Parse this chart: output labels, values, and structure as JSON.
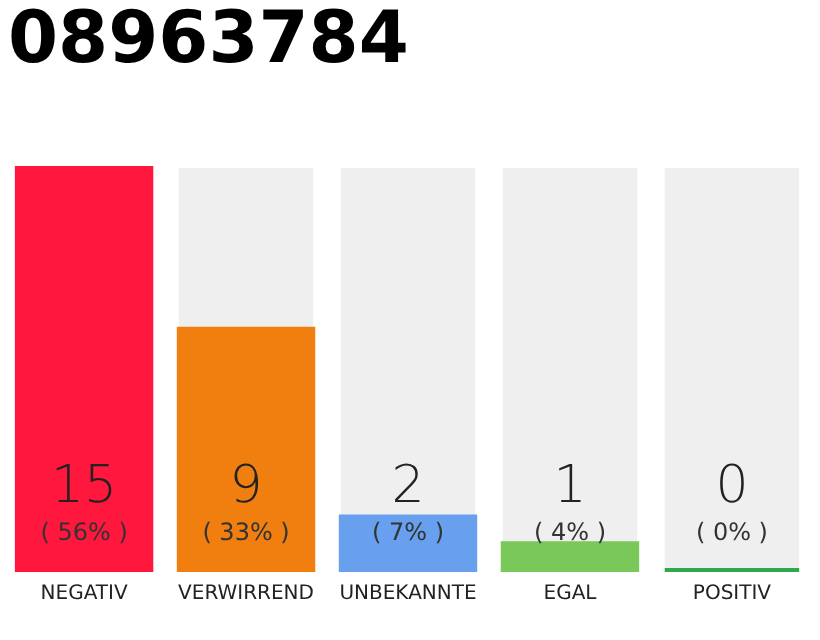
{
  "chart_data": {
    "type": "bar",
    "title": "08963784",
    "categories": [
      "NEGATIV",
      "VERWIRREND",
      "UNBEKANNTE",
      "EGAL",
      "POSITIV"
    ],
    "values": [
      15,
      9,
      2,
      1,
      0
    ],
    "colors": [
      "#ff173d",
      "#f07f0f",
      "#68a0ef",
      "#7ac85a",
      "#2ea84a"
    ],
    "ylim": [
      0,
      15
    ],
    "data_labels": true,
    "grid": false,
    "tick_labels": "x",
    "annotations": [
      "( 56% )",
      "( 33% )",
      "( 7% )",
      "( 4% )",
      "( 0% )"
    ]
  }
}
